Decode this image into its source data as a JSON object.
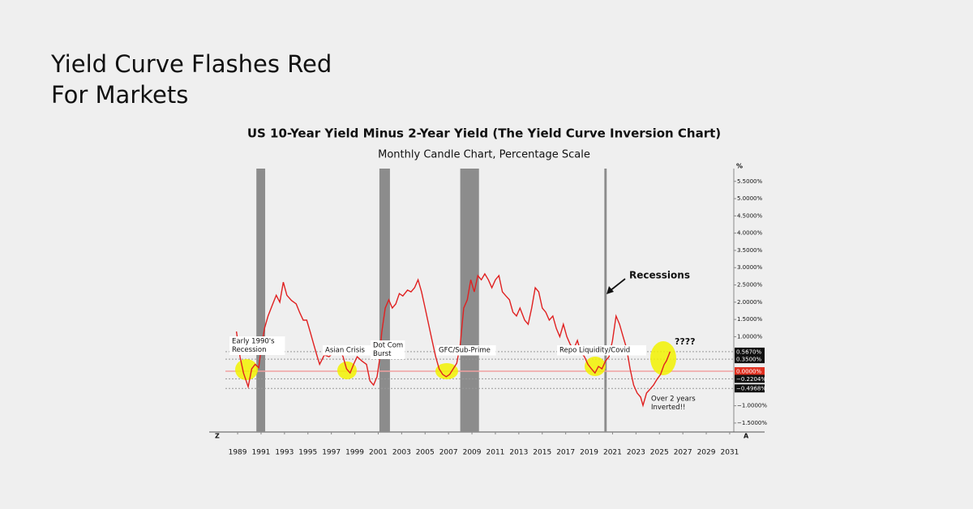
{
  "page_title": [
    "Yield Curve Flashes Red",
    "For Markets"
  ],
  "chart_data": {
    "type": "line",
    "title": "US 10-Year Yield Minus 2-Year Yield (The Yield Curve Inversion Chart)",
    "subtitle": "Monthly Candle Chart, Percentage Scale",
    "y_axis_unit": "%",
    "left_corner_label": "Z",
    "right_corner_label": "A",
    "color": "#e02020",
    "x": [
      1988.9,
      1989.2,
      1989.5,
      1989.9,
      1990.2,
      1990.5,
      1990.8,
      1991.0,
      1991.3,
      1991.6,
      1992.0,
      1992.3,
      1992.6,
      1992.9,
      1993.2,
      1993.6,
      1994.0,
      1994.3,
      1994.6,
      1994.9,
      1995.2,
      1995.5,
      1995.8,
      1996.0,
      1996.4,
      1996.8,
      1997.2,
      1997.6,
      1998.0,
      1998.3,
      1998.6,
      1998.9,
      1999.2,
      1999.6,
      2000.0,
      2000.3,
      2000.6,
      2000.9,
      2001.1,
      2001.3,
      2001.6,
      2001.9,
      2002.2,
      2002.5,
      2002.8,
      2003.1,
      2003.5,
      2003.8,
      2004.1,
      2004.4,
      2004.7,
      2005.0,
      2005.3,
      2005.6,
      2005.9,
      2006.2,
      2006.5,
      2006.8,
      2007.1,
      2007.4,
      2007.7,
      2008.0,
      2008.3,
      2008.6,
      2008.9,
      2009.2,
      2009.5,
      2009.8,
      2010.1,
      2010.4,
      2010.7,
      2011.0,
      2011.3,
      2011.6,
      2011.9,
      2012.2,
      2012.5,
      2012.8,
      2013.1,
      2013.5,
      2013.8,
      2014.1,
      2014.4,
      2014.7,
      2015.0,
      2015.3,
      2015.6,
      2015.9,
      2016.2,
      2016.5,
      2016.8,
      2017.1,
      2017.4,
      2017.7,
      2018.0,
      2018.3,
      2018.6,
      2018.9,
      2019.2,
      2019.5,
      2019.8,
      2020.1,
      2020.4,
      2020.7,
      2021.0,
      2021.3,
      2021.6,
      2021.9,
      2022.2,
      2022.5,
      2022.8,
      2023.1,
      2023.4,
      2023.6,
      2023.9,
      2024.2,
      2024.5,
      2024.8,
      2025.1,
      2025.4,
      2025.6,
      2025.8,
      2025.9
    ],
    "values": [
      1.15,
      0.42,
      -0.05,
      -0.45,
      0.07,
      0.2,
      0.1,
      0.65,
      1.25,
      1.6,
      1.95,
      2.2,
      2.0,
      2.58,
      2.2,
      2.05,
      1.95,
      1.7,
      1.48,
      1.48,
      1.13,
      0.77,
      0.42,
      0.2,
      0.47,
      0.42,
      0.54,
      0.7,
      0.42,
      0.07,
      -0.05,
      0.2,
      0.42,
      0.3,
      0.2,
      -0.28,
      -0.4,
      -0.16,
      0.3,
      1.13,
      1.83,
      2.07,
      1.83,
      1.95,
      2.25,
      2.18,
      2.35,
      2.3,
      2.42,
      2.65,
      2.3,
      1.83,
      1.36,
      0.89,
      0.42,
      0.07,
      -0.09,
      -0.16,
      -0.09,
      0.07,
      0.23,
      0.77,
      1.83,
      2.07,
      2.65,
      2.3,
      2.77,
      2.65,
      2.82,
      2.65,
      2.42,
      2.65,
      2.77,
      2.3,
      2.18,
      2.07,
      1.71,
      1.6,
      1.83,
      1.48,
      1.36,
      1.83,
      2.42,
      2.3,
      1.83,
      1.71,
      1.48,
      1.6,
      1.24,
      1.0,
      1.36,
      1.0,
      0.77,
      0.66,
      0.89,
      0.54,
      0.42,
      0.2,
      0.07,
      -0.05,
      0.14,
      0.07,
      0.3,
      0.42,
      0.89,
      1.6,
      1.36,
      1.0,
      0.66,
      0.07,
      -0.4,
      -0.63,
      -0.75,
      -0.99,
      -0.63,
      -0.52,
      -0.4,
      -0.23,
      -0.09,
      0.19,
      0.3,
      0.47,
      0.567
    ],
    "xlim": [
      1986.85,
      2031.35
    ],
    "ylim": [
      -1.76,
      5.87
    ],
    "xticks": [
      1989,
      1991,
      1993,
      1995,
      1997,
      1999,
      2001,
      2003,
      2005,
      2007,
      2009,
      2011,
      2013,
      2015,
      2017,
      2019,
      2021,
      2023,
      2025,
      2027,
      2029,
      2031
    ],
    "yticks": [
      {
        "value": 5.5,
        "label": "5.5000%"
      },
      {
        "value": 5,
        "label": "5.0000%"
      },
      {
        "value": 4.5,
        "label": "4.5000%"
      },
      {
        "value": 4,
        "label": "4.0000%"
      },
      {
        "value": 3.5,
        "label": "3.5000%"
      },
      {
        "value": 3,
        "label": "3.0000%"
      },
      {
        "value": 2.5,
        "label": "2.5000%"
      },
      {
        "value": 2,
        "label": "2.0000%"
      },
      {
        "value": 1.5,
        "label": "1.5000%"
      },
      {
        "value": 1,
        "label": "1.0000%"
      },
      {
        "value": -1,
        "label": "−1.0000%"
      },
      {
        "value": -1.5,
        "label": "−1.5000%"
      }
    ],
    "recessions": [
      [
        1990.6,
        1991.35
      ],
      [
        2001.1,
        2002.0
      ],
      [
        2008.0,
        2009.6
      ],
      [
        2020.3,
        2020.5
      ]
    ],
    "recession_color": "#8c8c8c",
    "recession_label": "Recessions",
    "reference_lines": [
      {
        "value": 0.567,
        "label": "0.5670%",
        "color": "#111111"
      },
      {
        "value": 0.35,
        "label": "0.3500%",
        "color": "#111111"
      },
      {
        "value": 0,
        "label": "0.0000%",
        "color": "#e03020"
      },
      {
        "value": -0.2204,
        "label": "−0.2204%",
        "color": "#111111"
      },
      {
        "value": -0.4968,
        "label": "−0.4968%",
        "color": "#111111"
      }
    ],
    "annotations": [
      {
        "lines": [
          "Early 1990's",
          "Recession"
        ]
      },
      {
        "lines": [
          "Asian Crisis"
        ]
      },
      {
        "lines": [
          "Dot Com",
          "Burst"
        ]
      },
      {
        "lines": [
          "GFC/Sub-Prime"
        ]
      },
      {
        "lines": [
          "Repo Liquidity/Covid"
        ]
      },
      {
        "lines": [
          "????"
        ]
      },
      {
        "lines": [
          "Over 2 years",
          "Inverted!!"
        ]
      }
    ]
  }
}
